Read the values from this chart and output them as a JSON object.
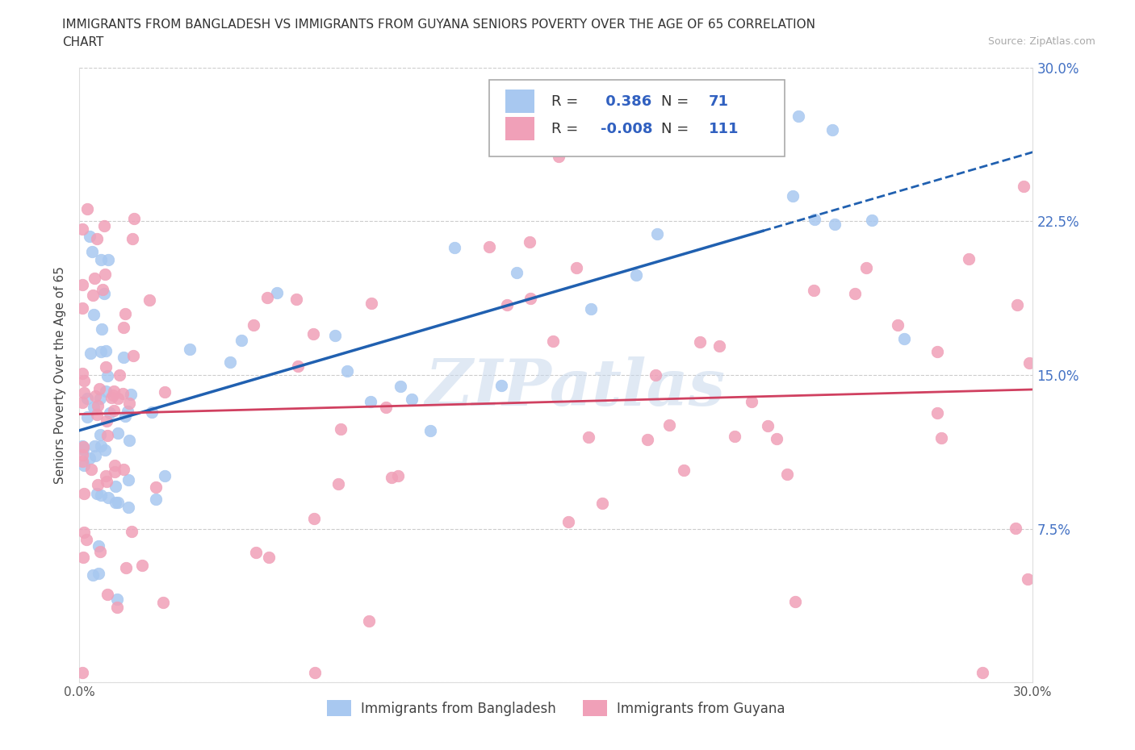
{
  "title_line1": "IMMIGRANTS FROM BANGLADESH VS IMMIGRANTS FROM GUYANA SENIORS POVERTY OVER THE AGE OF 65 CORRELATION",
  "title_line2": "CHART",
  "source": "Source: ZipAtlas.com",
  "ylabel": "Seniors Poverty Over the Age of 65",
  "xlim": [
    0.0,
    0.3
  ],
  "ylim": [
    0.0,
    0.3
  ],
  "xtick_vals": [
    0.0,
    0.05,
    0.1,
    0.15,
    0.2,
    0.25,
    0.3
  ],
  "ytick_vals": [
    0.0,
    0.075,
    0.15,
    0.225,
    0.3
  ],
  "xtick_labels": [
    "0.0%",
    "",
    "",
    "",
    "",
    "",
    "30.0%"
  ],
  "ytick_labels_left": [
    "",
    "",
    "",
    "",
    ""
  ],
  "ytick_labels_right": [
    "",
    "7.5%",
    "15.0%",
    "22.5%",
    "30.0%"
  ],
  "bangladesh_R": 0.386,
  "bangladesh_N": 71,
  "guyana_R": -0.008,
  "guyana_N": 111,
  "bangladesh_color": "#a8c8f0",
  "guyana_color": "#f0a0b8",
  "bangladesh_line_color": "#2060b0",
  "guyana_line_color": "#d04060",
  "legend_label_bangladesh": "Immigrants from Bangladesh",
  "legend_label_guyana": "Immigrants from Guyana",
  "watermark": "ZIPatlas",
  "right_tick_color": "#4472c4",
  "grid_color": "#cccccc",
  "grid_linestyle": "--"
}
